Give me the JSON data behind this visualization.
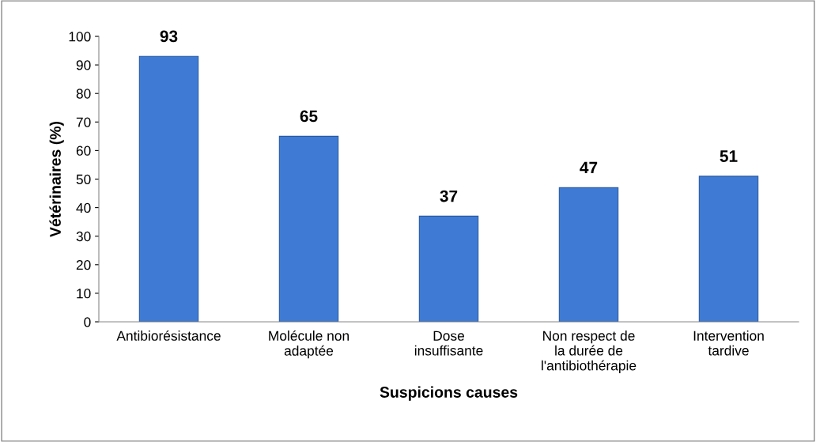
{
  "chart_data": {
    "type": "bar",
    "xlabel": "Suspicions causes",
    "ylabel": "Vétérinaires (%)",
    "categories": [
      "Antibiorésistance",
      "Molécule non\nadaptée",
      "Dose\ninsuffisante",
      "Non respect de\nla durée de\nl'antibiothérapie",
      "Intervention\ntardive"
    ],
    "values": [
      93,
      65,
      37,
      47,
      51
    ],
    "color": "#3f7bd4",
    "ylim": [
      0,
      100
    ],
    "yticks": [
      0,
      10,
      20,
      30,
      40,
      50,
      60,
      70,
      80,
      90,
      100
    ],
    "grid": false,
    "data_labels": true
  }
}
